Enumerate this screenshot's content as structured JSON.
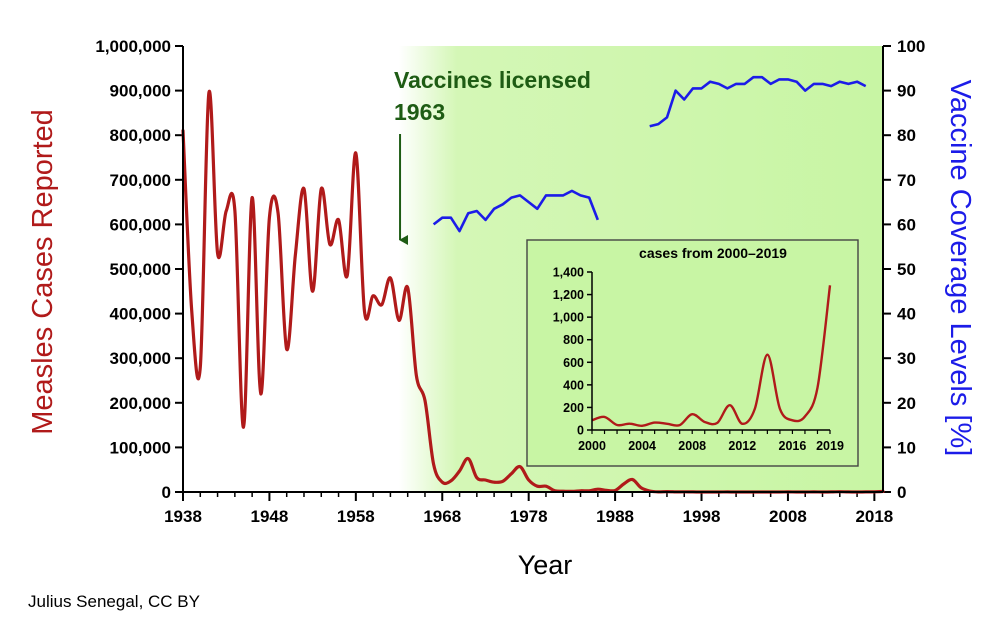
{
  "chart_data": [
    {
      "type": "line",
      "x_axis": {
        "label": "Year",
        "range": [
          1938,
          2019
        ],
        "ticks": [
          1938,
          1948,
          1958,
          1968,
          1978,
          1988,
          1998,
          2008,
          2018
        ],
        "tick_labels": [
          "1938",
          "1948",
          "1958",
          "1968",
          "1978",
          "1988",
          "1998",
          "2008",
          "2018"
        ]
      },
      "y_left": {
        "label": "Measles Cases Reported",
        "range": [
          0,
          1000000
        ],
        "tick_labels": [
          "0",
          "100,000",
          "200,000",
          "300,000",
          "400,000",
          "500,000",
          "600,000",
          "700,000",
          "800,000",
          "900,000",
          "1,000,000"
        ]
      },
      "y_right": {
        "label": "Vaccine Coverage Levels [%]",
        "range": [
          0,
          100
        ],
        "tick_labels": [
          "0",
          "10",
          "20",
          "30",
          "40",
          "50",
          "60",
          "70",
          "80",
          "90",
          "100"
        ]
      },
      "shaded_region": {
        "from": 1963,
        "to": 2019,
        "color": "#c8f5a4"
      },
      "annotation": {
        "line1": "Vaccines licensed",
        "line2": "1963",
        "year": 1963,
        "color": "#1e5c14"
      },
      "series": [
        {
          "axis": "left",
          "color": "#b01a1a",
          "points": [
            [
              1938,
              810000
            ],
            [
              1939,
              410000
            ],
            [
              1940,
              280000
            ],
            [
              1941,
              895000
            ],
            [
              1942,
              535000
            ],
            [
              1943,
              630000
            ],
            [
              1944,
              630000
            ],
            [
              1945,
              145000
            ],
            [
              1946,
              660000
            ],
            [
              1947,
              220000
            ],
            [
              1948,
              615000
            ],
            [
              1949,
              625000
            ],
            [
              1950,
              320000
            ],
            [
              1951,
              530000
            ],
            [
              1952,
              680000
            ],
            [
              1953,
              450000
            ],
            [
              1954,
              680000
            ],
            [
              1955,
              555000
            ],
            [
              1956,
              610000
            ],
            [
              1957,
              485000
            ],
            [
              1958,
              760000
            ],
            [
              1959,
              405000
            ],
            [
              1960,
              440000
            ],
            [
              1961,
              420000
            ],
            [
              1962,
              480000
            ],
            [
              1963,
              385000
            ],
            [
              1964,
              458000
            ],
            [
              1965,
              262000
            ],
            [
              1966,
              205000
            ],
            [
              1967,
              62000
            ],
            [
              1968,
              22000
            ],
            [
              1969,
              25000
            ],
            [
              1970,
              47000
            ],
            [
              1971,
              75000
            ],
            [
              1972,
              32000
            ],
            [
              1973,
              27000
            ],
            [
              1974,
              22000
            ],
            [
              1975,
              24000
            ],
            [
              1976,
              41000
            ],
            [
              1977,
              57000
            ],
            [
              1978,
              27000
            ],
            [
              1979,
              13000
            ],
            [
              1980,
              13000
            ],
            [
              1981,
              3000
            ],
            [
              1982,
              1700
            ],
            [
              1983,
              1500
            ],
            [
              1984,
              2600
            ],
            [
              1985,
              2800
            ],
            [
              1986,
              6300
            ],
            [
              1987,
              3700
            ],
            [
              1988,
              3400
            ],
            [
              1989,
              18000
            ],
            [
              1990,
              28000
            ],
            [
              1991,
              9600
            ],
            [
              1992,
              2200
            ],
            [
              1993,
              300
            ],
            [
              1994,
              1000
            ],
            [
              1995,
              300
            ],
            [
              1996,
              500
            ],
            [
              1997,
              150
            ],
            [
              1998,
              100
            ],
            [
              1999,
              100
            ],
            [
              2000,
              86
            ],
            [
              2001,
              116
            ],
            [
              2002,
              44
            ],
            [
              2003,
              56
            ],
            [
              2004,
              37
            ],
            [
              2005,
              66
            ],
            [
              2006,
              55
            ],
            [
              2007,
              43
            ],
            [
              2008,
              140
            ],
            [
              2009,
              71
            ],
            [
              2010,
              63
            ],
            [
              2011,
              220
            ],
            [
              2012,
              55
            ],
            [
              2013,
              187
            ],
            [
              2014,
              667
            ],
            [
              2015,
              188
            ],
            [
              2016,
              86
            ],
            [
              2017,
              120
            ],
            [
              2018,
              375
            ],
            [
              2019,
              1282
            ]
          ]
        },
        {
          "axis": "right",
          "color": "#1c1ce8",
          "segments": [
            [
              [
                1967,
                60
              ],
              [
                1968,
                61.5
              ],
              [
                1969,
                61.5
              ],
              [
                1970,
                58.5
              ],
              [
                1971,
                62.5
              ],
              [
                1972,
                63
              ],
              [
                1973,
                61
              ],
              [
                1974,
                63.5
              ],
              [
                1975,
                64.5
              ],
              [
                1976,
                66
              ],
              [
                1977,
                66.5
              ],
              [
                1978,
                65
              ],
              [
                1979,
                63.5
              ],
              [
                1980,
                66.5
              ],
              [
                1981,
                66.5
              ],
              [
                1982,
                66.5
              ],
              [
                1983,
                67.5
              ],
              [
                1984,
                66.5
              ],
              [
                1985,
                66
              ],
              [
                1986,
                61
              ]
            ],
            [
              [
                1992,
                82
              ],
              [
                1993,
                82.5
              ],
              [
                1994,
                84
              ],
              [
                1995,
                90
              ],
              [
                1996,
                88
              ],
              [
                1997,
                90.5
              ],
              [
                1998,
                90.5
              ],
              [
                1999,
                92
              ],
              [
                2000,
                91.5
              ],
              [
                2001,
                90.5
              ],
              [
                2002,
                91.5
              ],
              [
                2003,
                91.5
              ],
              [
                2004,
                93
              ],
              [
                2005,
                93
              ],
              [
                2006,
                91.5
              ],
              [
                2007,
                92.5
              ],
              [
                2008,
                92.5
              ],
              [
                2009,
                92
              ],
              [
                2010,
                90
              ],
              [
                2011,
                91.5
              ],
              [
                2012,
                91.5
              ],
              [
                2013,
                91
              ],
              [
                2014,
                92
              ],
              [
                2015,
                91.5
              ],
              [
                2016,
                92
              ],
              [
                2017,
                91
              ]
            ]
          ]
        }
      ]
    },
    {
      "type": "line",
      "title": "cases from 2000–2019",
      "x_axis": {
        "range": [
          2000,
          2019
        ],
        "tick_labels": [
          "2000",
          "2004",
          "2008",
          "2012",
          "2016",
          "2019"
        ]
      },
      "y_axis": {
        "range": [
          0,
          1400
        ],
        "tick_labels": [
          "0",
          "200",
          "400",
          "600",
          "800",
          "1,000",
          "1,200",
          "1,400"
        ]
      },
      "series": [
        {
          "color": "#b01a1a",
          "points": [
            [
              2000,
              86
            ],
            [
              2001,
              116
            ],
            [
              2002,
              44
            ],
            [
              2003,
              56
            ],
            [
              2004,
              37
            ],
            [
              2005,
              66
            ],
            [
              2006,
              55
            ],
            [
              2007,
              43
            ],
            [
              2008,
              140
            ],
            [
              2009,
              71
            ],
            [
              2010,
              63
            ],
            [
              2011,
              220
            ],
            [
              2012,
              55
            ],
            [
              2013,
              187
            ],
            [
              2014,
              667
            ],
            [
              2015,
              188
            ],
            [
              2016,
              86
            ],
            [
              2017,
              120
            ],
            [
              2018,
              375
            ],
            [
              2019,
              1282
            ]
          ]
        }
      ]
    }
  ],
  "credit": "Julius Senegal, CC BY"
}
